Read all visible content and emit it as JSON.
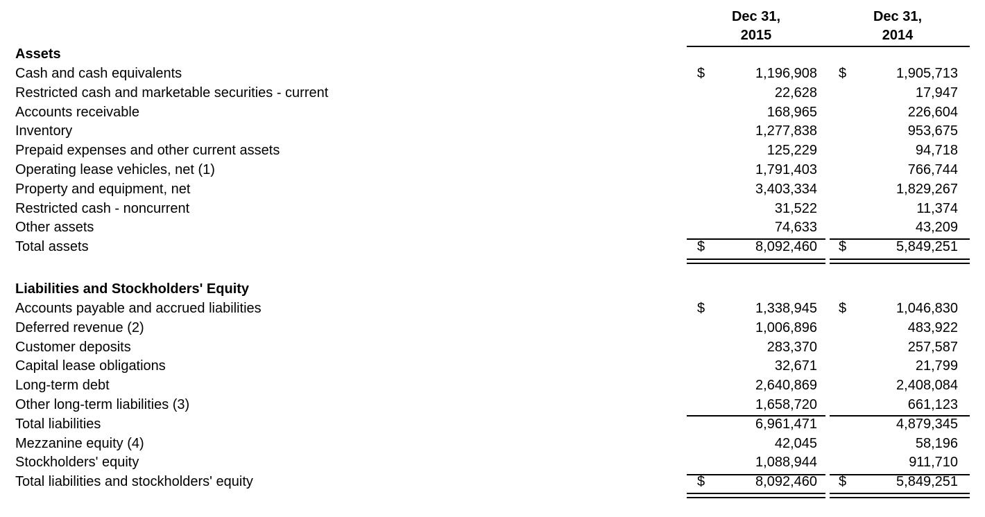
{
  "columns": [
    "Dec 31,\n2015",
    "Dec 31,\n2014"
  ],
  "assets": {
    "title": "Assets",
    "rows": [
      {
        "label": "Cash and cash equivalents",
        "c2015": "1,196,908",
        "c2014": "1,905,713",
        "dollar": "$"
      },
      {
        "label": "Restricted cash and marketable securities - current",
        "c2015": "22,628",
        "c2014": "17,947"
      },
      {
        "label": "Accounts receivable",
        "c2015": "168,965",
        "c2014": "226,604"
      },
      {
        "label": "Inventory",
        "c2015": "1,277,838",
        "c2014": "953,675"
      },
      {
        "label": "Prepaid expenses and other current assets",
        "c2015": "125,229",
        "c2014": "94,718"
      },
      {
        "label": "Operating lease vehicles, net (1)",
        "c2015": "1,791,403",
        "c2014": "766,744"
      },
      {
        "label": "Property and equipment, net",
        "c2015": "3,403,334",
        "c2014": "1,829,267"
      },
      {
        "label": "Restricted cash - noncurrent",
        "c2015": "31,522",
        "c2014": "11,374"
      },
      {
        "label": "Other assets",
        "c2015": "74,633",
        "c2014": "43,209"
      },
      {
        "label": "Total assets",
        "c2015": "8,092,460",
        "c2014": "5,849,251",
        "dollar": "$"
      }
    ]
  },
  "liabilities": {
    "title": "Liabilities and Stockholders' Equity",
    "rows": [
      {
        "label": "Accounts payable and accrued liabilities",
        "c2015": "1,338,945",
        "c2014": "1,046,830",
        "dollar": "$"
      },
      {
        "label": "Deferred revenue (2)",
        "c2015": "1,006,896",
        "c2014": "483,922"
      },
      {
        "label": "Customer deposits",
        "c2015": "283,370",
        "c2014": "257,587"
      },
      {
        "label": "Capital lease obligations",
        "c2015": "32,671",
        "c2014": "21,799"
      },
      {
        "label": "Long-term debt",
        "c2015": "2,640,869",
        "c2014": "2,408,084"
      },
      {
        "label": "Other long-term liabilities (3)",
        "c2015": "1,658,720",
        "c2014": "661,123"
      },
      {
        "label": "Total liabilities",
        "c2015": "6,961,471",
        "c2014": "4,879,345"
      },
      {
        "label": "Mezzanine equity (4)",
        "c2015": "42,045",
        "c2014": "58,196"
      },
      {
        "label": "Stockholders' equity",
        "c2015": "1,088,944",
        "c2014": "911,710"
      },
      {
        "label": "Total liabilities and stockholders' equity",
        "c2015": "8,092,460",
        "c2014": "5,849,251",
        "dollar": "$"
      }
    ]
  }
}
